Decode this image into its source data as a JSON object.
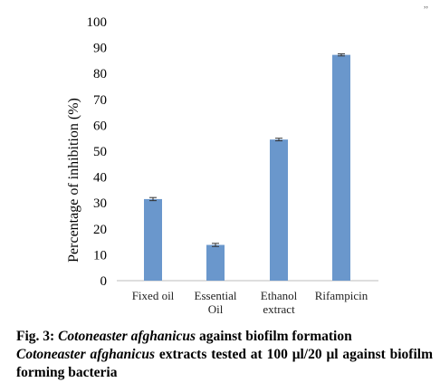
{
  "corner_mark": ",,",
  "chart_data": {
    "type": "bar",
    "categories": [
      [
        "Fixed oil"
      ],
      [
        "Essential",
        "Oil"
      ],
      [
        "Ethanol",
        "extract"
      ],
      [
        "Rifampicin"
      ]
    ],
    "values": [
      31.5,
      13.8,
      54.5,
      87.2
    ],
    "errors": [
      0.6,
      0.6,
      0.5,
      0.4
    ],
    "ylabel": "Percentage of inhibition (%)",
    "ylim": [
      0,
      100
    ],
    "yticks": [
      0,
      10,
      20,
      30,
      40,
      50,
      60,
      70,
      80,
      90,
      100
    ],
    "bar_color": "#6a97cc",
    "grid": false
  },
  "caption": {
    "fig_label": "Fig. 3:",
    "title_italic": "Cotoneaster afghanicus",
    "title_rest": "against biofilm formation",
    "line2_italic": "Cotoneaster afghanicus",
    "line2_rest": "extracts tested at 100 μl/20 μl against biofilm forming bacteria"
  }
}
